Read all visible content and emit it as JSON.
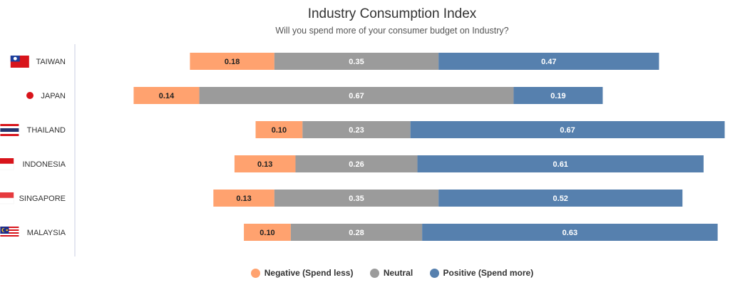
{
  "chart_data": {
    "type": "bar",
    "orientation": "horizontal",
    "stacked": true,
    "layout": "diverging",
    "title": "Industry Consumption Index",
    "subtitle": "Will you spend more of your consumer budget on Industry?",
    "categories": [
      "TAIWAN",
      "JAPAN",
      "THAILAND",
      "INDONESIA",
      "SINGAPORE",
      "MALAYSIA"
    ],
    "flags": [
      "taiwan-flag-icon",
      "japan-flag-icon",
      "thailand-flag-icon",
      "indonesia-flag-icon",
      "singapore-flag-icon",
      "malaysia-flag-icon"
    ],
    "series": [
      {
        "name": "Negative (Spend less)",
        "color": "#FFA26F",
        "label_color": "#222222",
        "values": [
          0.18,
          0.14,
          0.1,
          0.13,
          0.13,
          0.1
        ],
        "labels": [
          "0.18",
          "0.14",
          "0.10",
          "0.13",
          "0.13",
          "0.10"
        ]
      },
      {
        "name": "Neutral",
        "color": "#9B9B9B",
        "label_color": "#ffffff",
        "values": [
          0.35,
          0.67,
          0.23,
          0.26,
          0.35,
          0.28
        ],
        "labels": [
          "0.35",
          "0.67",
          "0.23",
          "0.26",
          "0.35",
          "0.28"
        ]
      },
      {
        "name": "Positive (Spend more)",
        "color": "#5680AE",
        "label_color": "#ffffff",
        "values": [
          0.47,
          0.19,
          0.67,
          0.61,
          0.52,
          0.63
        ],
        "labels": [
          "0.47",
          "0.19",
          "0.67",
          "0.61",
          "0.52",
          "0.63"
        ]
      }
    ],
    "grid": false,
    "legend": "bottom-center"
  }
}
